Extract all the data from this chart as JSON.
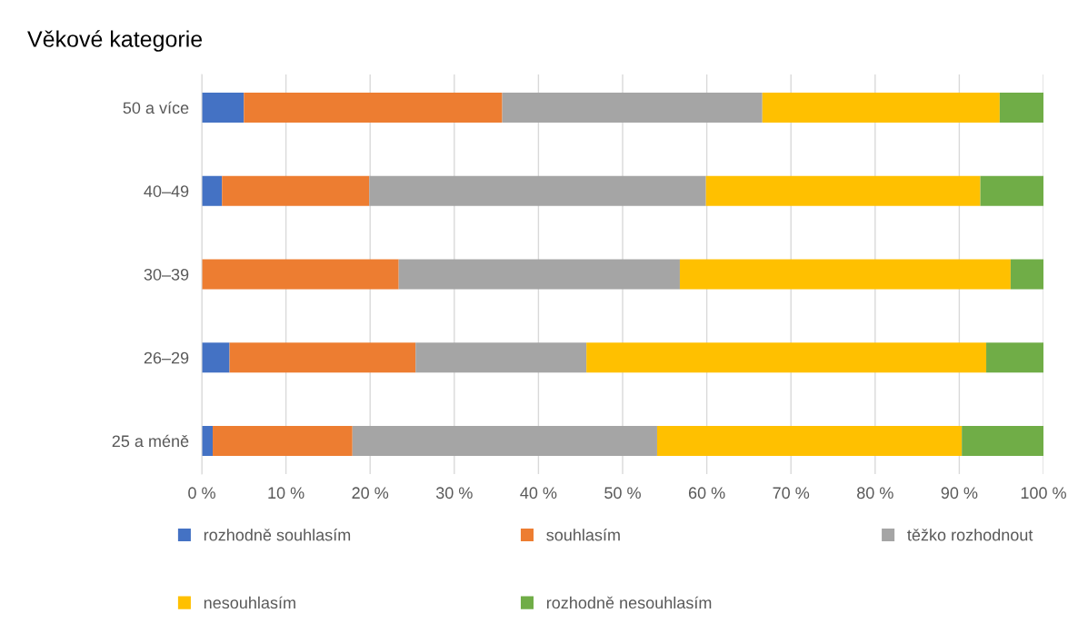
{
  "chart_data": {
    "type": "bar",
    "orientation": "horizontal",
    "stacked": true,
    "title": "Věkové kategorie",
    "categories": [
      "50 a více",
      "40–49",
      "30–39",
      "26–29",
      "25 a méně"
    ],
    "series": [
      {
        "name": "rozhodně souhlasím",
        "color": "#4472c4",
        "values": [
          5.0,
          2.4,
          0,
          3.3,
          1.3
        ]
      },
      {
        "name": "souhlasím",
        "color": "#ed7d31",
        "values": [
          30.7,
          17.5,
          23.4,
          22.1,
          16.6
        ]
      },
      {
        "name": "těžko rozhodnout",
        "color": "#a5a5a5",
        "values": [
          30.9,
          40.0,
          33.4,
          20.3,
          36.2
        ]
      },
      {
        "name": "nesouhlasím",
        "color": "#ffc000",
        "values": [
          28.2,
          32.6,
          39.3,
          47.5,
          36.2
        ]
      },
      {
        "name": "rozhodně nesouhlasím",
        "color": "#70ad47",
        "values": [
          5.2,
          7.5,
          3.9,
          6.8,
          9.7
        ]
      }
    ],
    "xlim": [
      0,
      100
    ],
    "xticks": [
      {
        "value": 0,
        "label": "0 %"
      },
      {
        "value": 10,
        "label": "10 %"
      },
      {
        "value": 20,
        "label": "20 %"
      },
      {
        "value": 30,
        "label": "30 %"
      },
      {
        "value": 40,
        "label": "40 %"
      },
      {
        "value": 50,
        "label": "50 %"
      },
      {
        "value": 60,
        "label": "60 %"
      },
      {
        "value": 70,
        "label": "70 %"
      },
      {
        "value": 80,
        "label": "80 %"
      },
      {
        "value": 90,
        "label": "90 %"
      },
      {
        "value": 100,
        "label": "100 %"
      }
    ],
    "grid": "x",
    "legend": "bottom"
  }
}
